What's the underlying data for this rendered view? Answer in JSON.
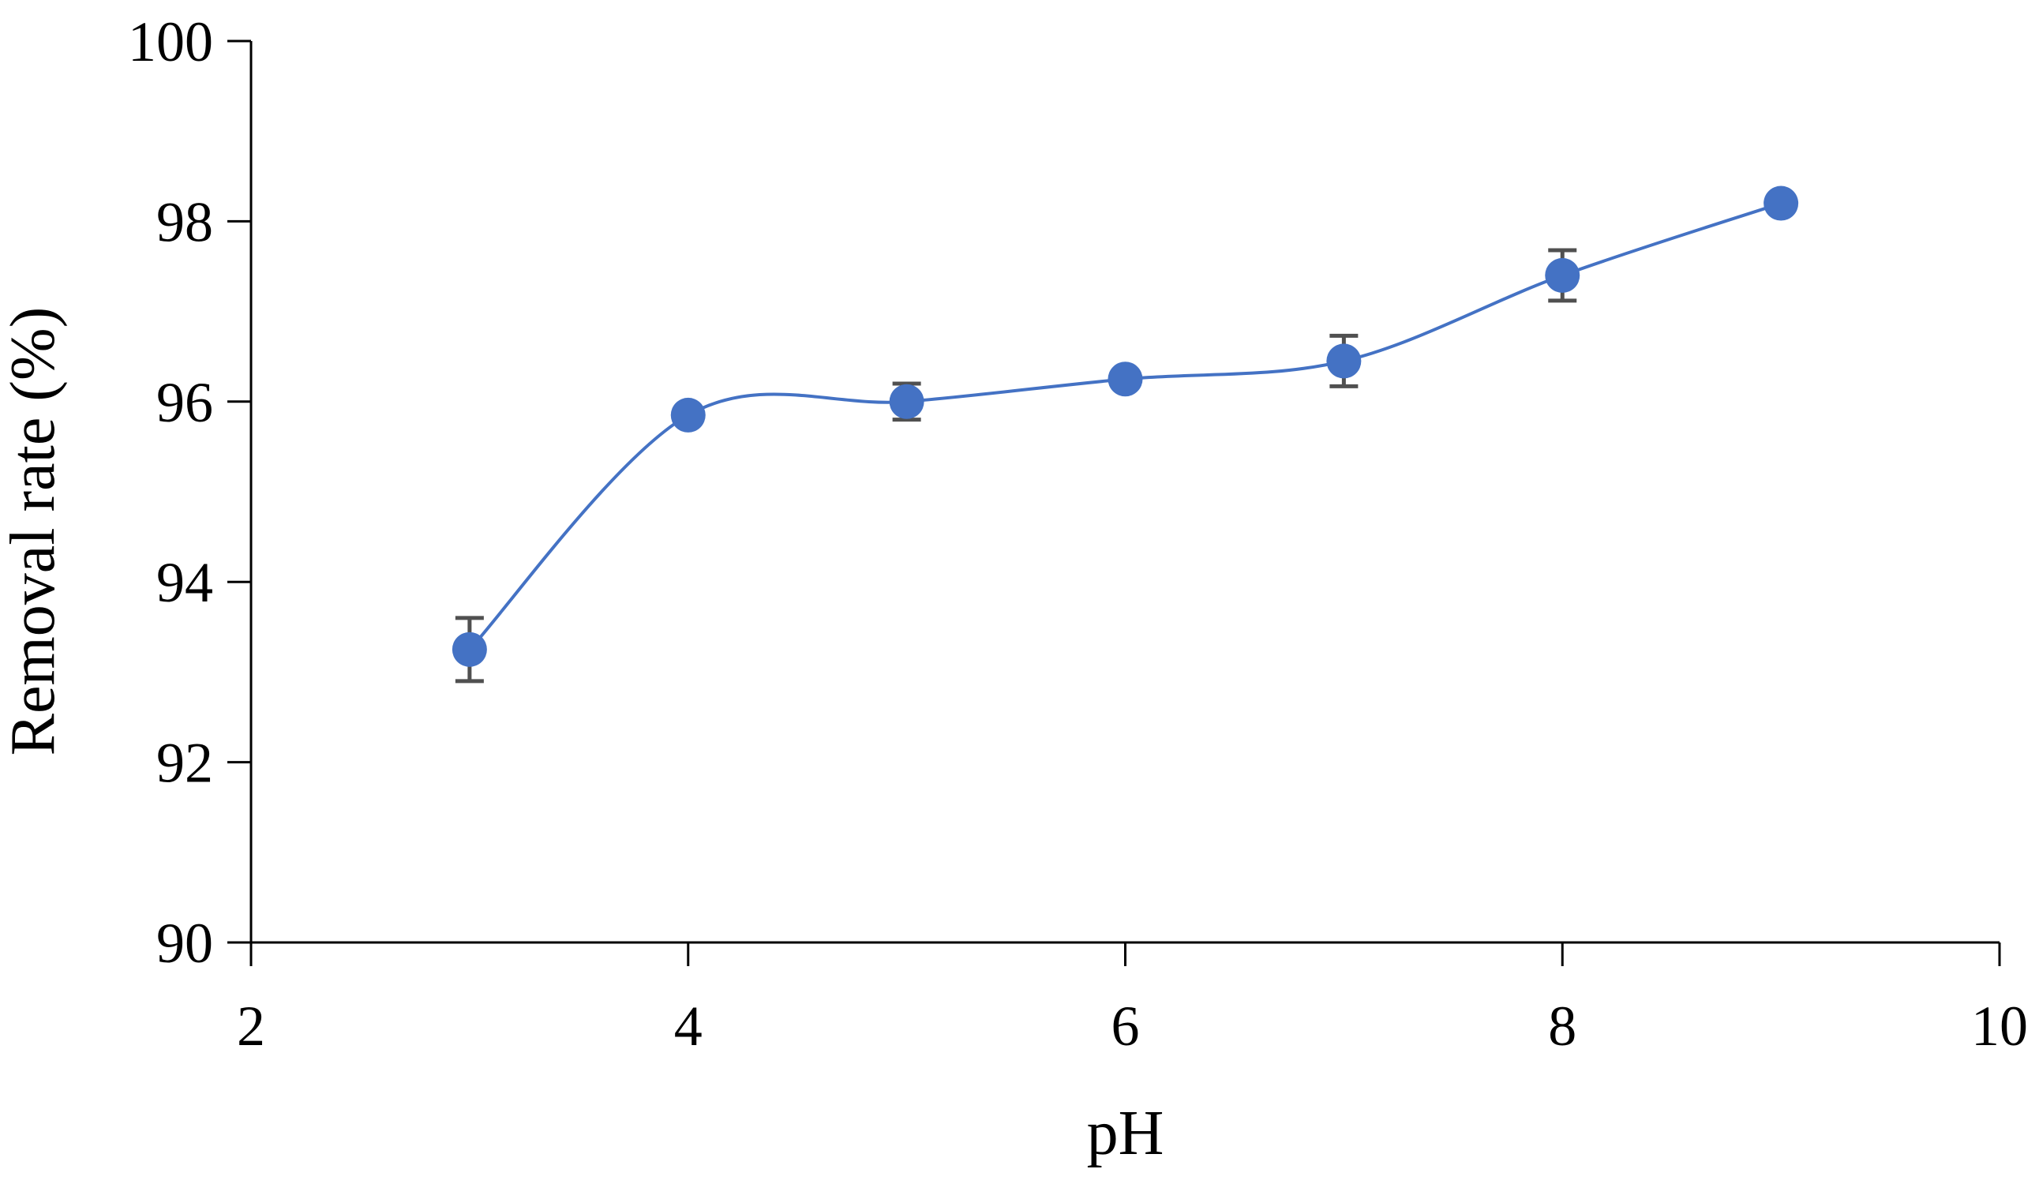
{
  "chart_data": {
    "type": "scatter",
    "title": "",
    "xlabel": "pH",
    "ylabel": "Removal rate (%)",
    "xlim": [
      2,
      10
    ],
    "ylim": [
      90,
      100
    ],
    "x_ticks": [
      "2",
      "4",
      "6",
      "8",
      "10"
    ],
    "y_ticks": [
      "90",
      "92",
      "94",
      "96",
      "98",
      "100"
    ],
    "x_tick_values": [
      2,
      4,
      6,
      8,
      10
    ],
    "y_tick_values": [
      90,
      92,
      94,
      96,
      98,
      100
    ],
    "grid": false,
    "legend": "none",
    "smoothed_line": true,
    "series": [
      {
        "points": [
          {
            "x": 3,
            "y": 93.25,
            "err": 0.35
          },
          {
            "x": 4,
            "y": 95.85,
            "err": 0.05
          },
          {
            "x": 5,
            "y": 96.0,
            "err": 0.2
          },
          {
            "x": 6,
            "y": 96.25,
            "err": 0.05
          },
          {
            "x": 7,
            "y": 96.45,
            "err": 0.28
          },
          {
            "x": 8,
            "y": 97.4,
            "err": 0.28
          },
          {
            "x": 9,
            "y": 98.2,
            "err": 0.0
          }
        ],
        "color": "#4472C4",
        "errorbar_color": "#505050"
      }
    ]
  }
}
